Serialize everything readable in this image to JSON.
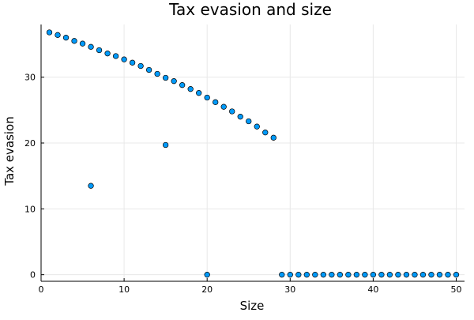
{
  "chart_data": {
    "type": "scatter",
    "title": "Tax evasion and size",
    "xlabel": "Size",
    "ylabel": "Tax evasion",
    "xlim": [
      0,
      51
    ],
    "ylim": [
      -1,
      38
    ],
    "xticks": [
      0,
      10,
      20,
      30,
      40,
      50
    ],
    "yticks": [
      0,
      10,
      20,
      30
    ],
    "grid": true,
    "legend": "none",
    "marker_color": "#009AFA",
    "series": [
      {
        "points": [
          [
            1,
            36.8
          ],
          [
            2,
            36.4
          ],
          [
            3,
            36.0
          ],
          [
            4,
            35.5
          ],
          [
            5,
            35.1
          ],
          [
            6,
            34.6
          ],
          [
            6,
            13.5
          ],
          [
            7,
            34.1
          ],
          [
            8,
            33.6
          ],
          [
            9,
            33.2
          ],
          [
            10,
            32.7
          ],
          [
            11,
            32.2
          ],
          [
            12,
            31.7
          ],
          [
            13,
            31.1
          ],
          [
            14,
            30.5
          ],
          [
            15,
            29.9
          ],
          [
            15,
            19.7
          ],
          [
            16,
            29.4
          ],
          [
            17,
            28.8
          ],
          [
            18,
            28.2
          ],
          [
            19,
            27.6
          ],
          [
            20,
            26.9
          ],
          [
            20,
            0
          ],
          [
            21,
            26.2
          ],
          [
            22,
            25.5
          ],
          [
            23,
            24.8
          ],
          [
            24,
            24.0
          ],
          [
            25,
            23.3
          ],
          [
            26,
            22.5
          ],
          [
            27,
            21.6
          ],
          [
            28,
            20.8
          ],
          [
            29,
            0
          ],
          [
            30,
            0
          ],
          [
            31,
            0
          ],
          [
            32,
            0
          ],
          [
            33,
            0
          ],
          [
            34,
            0
          ],
          [
            35,
            0
          ],
          [
            36,
            0
          ],
          [
            37,
            0
          ],
          [
            38,
            0
          ],
          [
            39,
            0
          ],
          [
            40,
            0
          ],
          [
            41,
            0
          ],
          [
            42,
            0
          ],
          [
            43,
            0
          ],
          [
            44,
            0
          ],
          [
            45,
            0
          ],
          [
            46,
            0
          ],
          [
            47,
            0
          ],
          [
            48,
            0
          ],
          [
            49,
            0
          ],
          [
            50,
            0
          ]
        ]
      }
    ]
  }
}
